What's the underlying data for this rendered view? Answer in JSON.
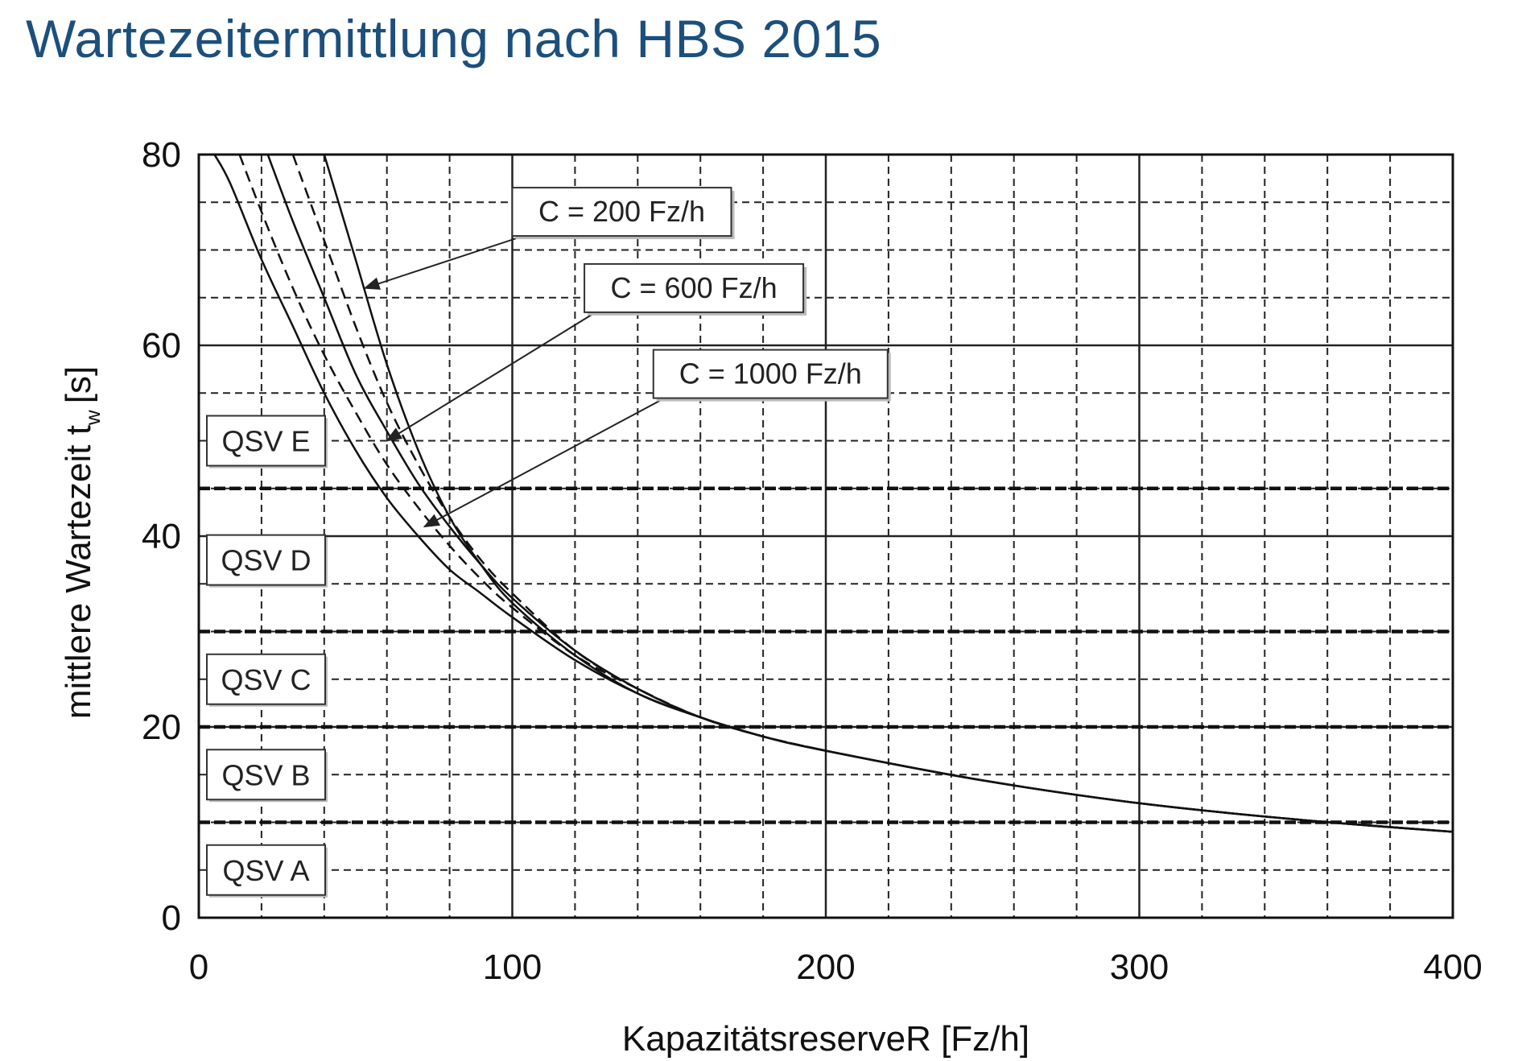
{
  "title": "Wartezeitermittlung nach HBS 2015",
  "chart_data": {
    "type": "line",
    "xlabel": "KapazitätsreserveR [Fz/h]",
    "ylabel": "mittlere Wartezeit",
    "ylabel_sub": "w",
    "ylabel_unit": "[s]",
    "xlim": [
      0,
      400
    ],
    "ylim": [
      0,
      80
    ],
    "x_ticks": [
      0,
      100,
      200,
      300,
      400
    ],
    "y_ticks": [
      0,
      20,
      40,
      60,
      80
    ],
    "grid": true,
    "series": [
      {
        "name": "C = 200 Fz/h",
        "style": "solid",
        "x": [
          40,
          50,
          60,
          70,
          80,
          90,
          100,
          120,
          140,
          160,
          180,
          200,
          250,
          300,
          350,
          400
        ],
        "y": [
          80,
          69,
          58,
          49,
          42,
          37,
          33,
          27.5,
          23.5,
          21,
          19,
          17.5,
          14.4,
          12,
          10.3,
          9
        ]
      },
      {
        "name": "C = 600 Fz/h",
        "style": "solid",
        "x": [
          22,
          30,
          40,
          50,
          60,
          70,
          80,
          90,
          100,
          120,
          140,
          160,
          180,
          200,
          250,
          300,
          350,
          400
        ],
        "y": [
          80,
          73,
          65,
          57,
          51,
          45.5,
          41,
          37,
          33.5,
          28,
          24,
          21,
          19,
          17.5,
          14.4,
          12,
          10.3,
          9
        ]
      },
      {
        "name": "C = 1000 Fz/h",
        "style": "solid",
        "x": [
          5,
          10,
          20,
          30,
          40,
          50,
          60,
          70,
          80,
          90,
          100,
          120,
          140,
          160,
          180,
          200,
          250,
          300,
          350,
          400
        ],
        "y": [
          80,
          77,
          69,
          62,
          55,
          49,
          44,
          40,
          36.5,
          34,
          31.5,
          27,
          23.5,
          21,
          19,
          17.5,
          14.4,
          12,
          10.3,
          9
        ]
      },
      {
        "style": "dashed",
        "x": [
          30,
          40,
          50,
          60,
          70,
          80,
          90,
          100,
          120,
          140,
          160,
          180,
          200
        ],
        "y": [
          80,
          71,
          62,
          54,
          47.5,
          42,
          37.5,
          34,
          28,
          24,
          21,
          19,
          17.5
        ]
      },
      {
        "style": "dashed",
        "x": [
          13,
          20,
          30,
          40,
          50,
          60,
          70,
          80,
          90,
          100,
          120,
          140,
          160,
          180,
          200
        ],
        "y": [
          80,
          74,
          66,
          59,
          53,
          47.5,
          43,
          39,
          35.5,
          32.5,
          27.5,
          24,
          21,
          19,
          17.5
        ]
      }
    ],
    "reference_lines": [
      {
        "y": 10,
        "style": "dashed"
      },
      {
        "y": 20,
        "style": "dashed"
      },
      {
        "y": 30,
        "style": "dashed"
      },
      {
        "y": 45,
        "style": "dashed"
      }
    ],
    "zone_labels": [
      {
        "text": "QSV E",
        "y": 50
      },
      {
        "text": "QSV D",
        "y": 37.5
      },
      {
        "text": "QSV C",
        "y": 25
      },
      {
        "text": "QSV B",
        "y": 15
      },
      {
        "text": "QSV A",
        "y": 5
      }
    ],
    "annotations": [
      {
        "text": "C = 200 Fz/h",
        "box_x": 100,
        "box_y": 74,
        "arrow_to": [
          53,
          66
        ]
      },
      {
        "text": "C = 600 Fz/h",
        "box_x": 123,
        "box_y": 66,
        "arrow_to": [
          60,
          50
        ]
      },
      {
        "text": "C = 1000 Fz/h",
        "box_x": 145,
        "box_y": 57,
        "arrow_to": [
          72,
          41
        ]
      }
    ]
  }
}
